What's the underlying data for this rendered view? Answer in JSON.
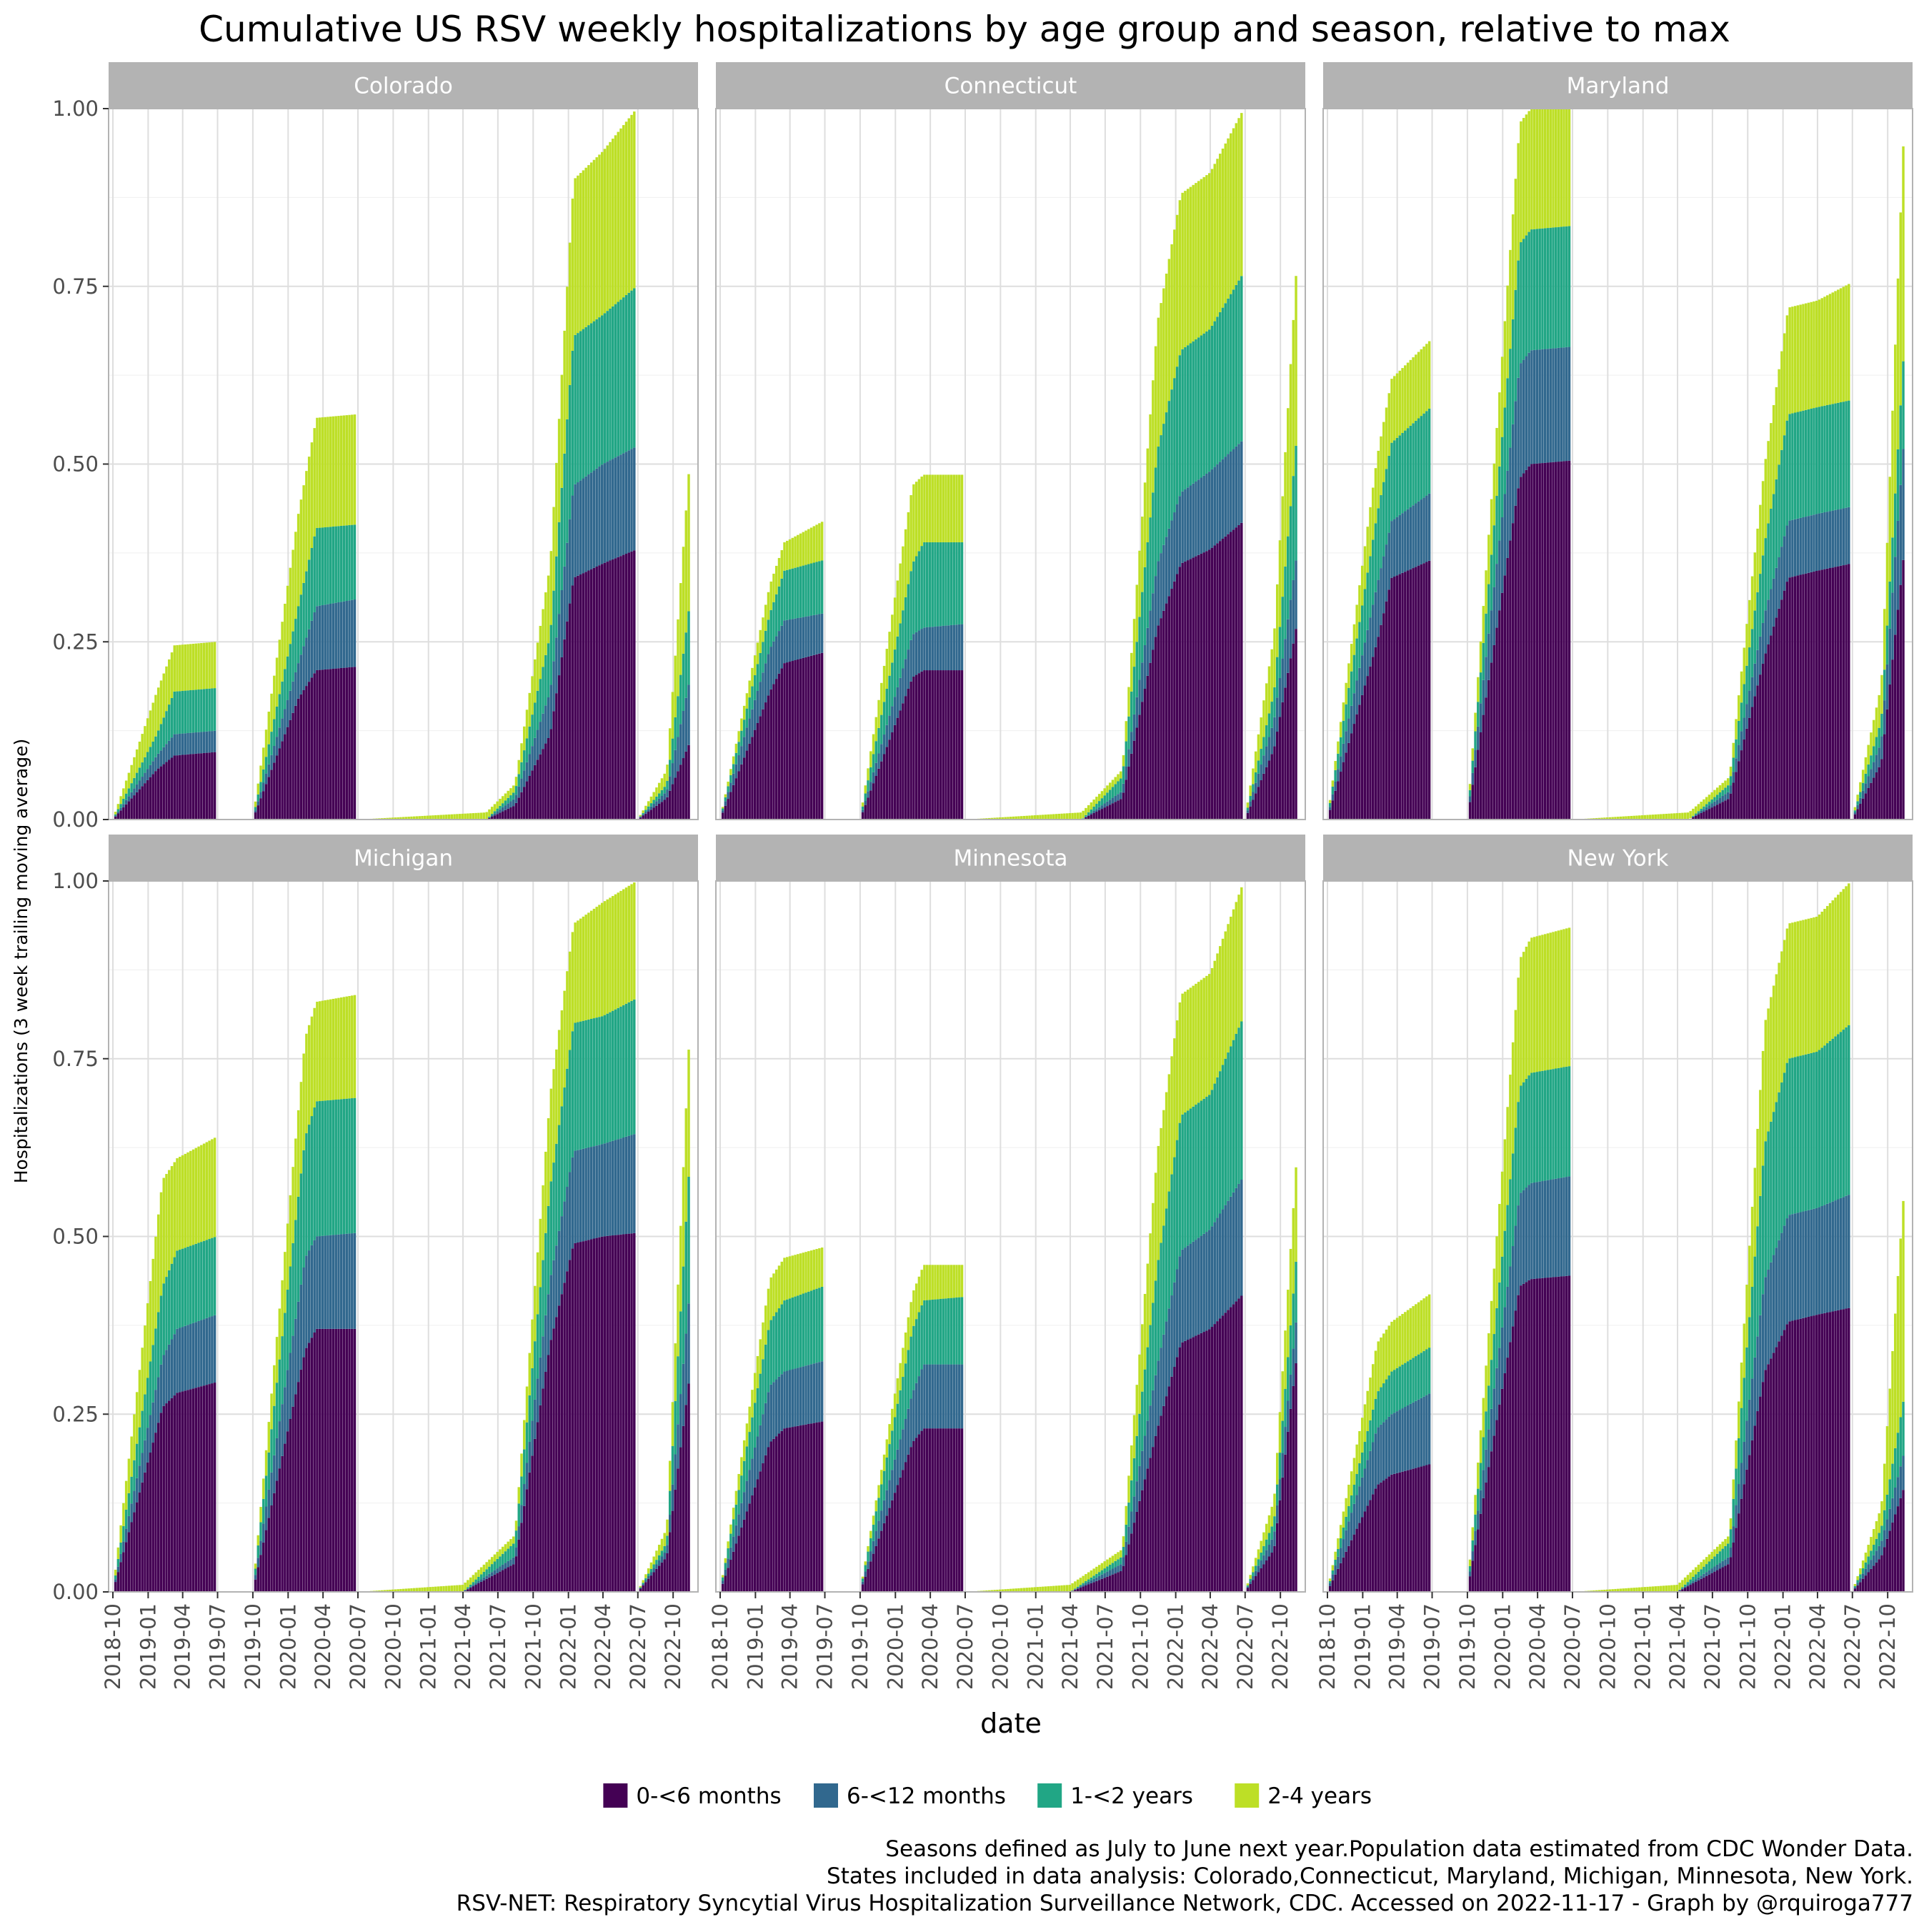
{
  "chart_data": {
    "type": "bar",
    "stacked": true,
    "facet_by": "state",
    "title": "Cumulative US RSV weekly hospitalizations by age group and season, relative to max",
    "xlabel": "date",
    "ylabel": "Hospitalizations (3 week trailing moving average)",
    "ylim": [
      0,
      1
    ],
    "yticks": [
      "0.00",
      "0.25",
      "0.50",
      "0.75",
      "1.00"
    ],
    "xticks": [
      "2018-10",
      "2019-01",
      "2019-04",
      "2019-07",
      "2019-10",
      "2020-01",
      "2020-04",
      "2020-07",
      "2020-10",
      "2021-01",
      "2021-04",
      "2021-07",
      "2021-10",
      "2022-01",
      "2022-04",
      "2022-07",
      "2022-10"
    ],
    "xrange": [
      "2018-10-01",
      "2022-11-20"
    ],
    "grid": true,
    "legend_position": "bottom",
    "series_names": [
      "0-<6 months",
      "6-<12 months",
      "1-<2 years",
      "2-4 years"
    ],
    "colors": [
      "#440154",
      "#31688e",
      "#21a685",
      "#bddf26"
    ],
    "panels": [
      {
        "state": "Colorado",
        "seasons": [
          {
            "x": [
              "2018-10-01",
              "2019-01-24",
              "2019-03-11",
              "2019-06-28"
            ],
            "curves": [
              [
                0.0,
                0.07,
                0.09,
                0.095
              ],
              [
                0.0,
                0.09,
                0.12,
                0.125
              ],
              [
                0.0,
                0.12,
                0.18,
                0.185
              ],
              [
                0.0,
                0.18,
                0.245,
                0.25
              ]
            ]
          },
          {
            "x": [
              "2019-10-01",
              "2020-01-28",
              "2020-03-15",
              "2020-06-28"
            ],
            "curves": [
              [
                0.0,
                0.17,
                0.21,
                0.215
              ],
              [
                0.0,
                0.22,
                0.3,
                0.31
              ],
              [
                0.0,
                0.3,
                0.41,
                0.415
              ],
              [
                0.0,
                0.43,
                0.565,
                0.57
              ]
            ]
          },
          {
            "x": [
              "2020-07-01",
              "2021-06-01",
              "2021-08-15",
              "2021-11-15",
              "2022-01-15",
              "2022-04-01",
              "2022-06-28"
            ],
            "curves": [
              [
                0.0,
                0.0,
                0.02,
                0.12,
                0.34,
                0.36,
                0.38
              ],
              [
                0.0,
                0.0,
                0.03,
                0.18,
                0.47,
                0.5,
                0.525
              ],
              [
                0.0,
                0.0,
                0.04,
                0.26,
                0.68,
                0.71,
                0.75
              ],
              [
                0.0,
                0.01,
                0.05,
                0.36,
                0.9,
                0.94,
                1.0
              ]
            ]
          },
          {
            "x": [
              "2022-07-01",
              "2022-09-15",
              "2022-11-15"
            ],
            "curves": [
              [
                0.0,
                0.03,
                0.11
              ],
              [
                0.0,
                0.04,
                0.2
              ],
              [
                0.0,
                0.05,
                0.31
              ],
              [
                0.0,
                0.07,
                0.515
              ]
            ]
          }
        ]
      },
      {
        "state": "Connecticut",
        "seasons": [
          {
            "x": [
              "2018-10-01",
              "2019-02-08",
              "2019-03-18",
              "2019-06-28"
            ],
            "curves": [
              [
                0.0,
                0.18,
                0.22,
                0.235
              ],
              [
                0.0,
                0.24,
                0.28,
                0.29
              ],
              [
                0.0,
                0.29,
                0.35,
                0.365
              ],
              [
                0.0,
                0.33,
                0.39,
                0.42
              ]
            ]
          },
          {
            "x": [
              "2019-10-01",
              "2020-02-15",
              "2020-03-15",
              "2020-06-28"
            ],
            "curves": [
              [
                0.0,
                0.2,
                0.21,
                0.21
              ],
              [
                0.0,
                0.26,
                0.27,
                0.275
              ],
              [
                0.0,
                0.36,
                0.39,
                0.39
              ],
              [
                0.0,
                0.47,
                0.485,
                0.485
              ]
            ]
          },
          {
            "x": [
              "2020-07-01",
              "2021-05-01",
              "2021-08-15",
              "2021-11-15",
              "2022-01-15",
              "2022-04-01",
              "2022-06-28"
            ],
            "curves": [
              [
                0.0,
                0.0,
                0.03,
                0.27,
                0.36,
                0.38,
                0.42
              ],
              [
                0.0,
                0.0,
                0.04,
                0.36,
                0.46,
                0.49,
                0.535
              ],
              [
                0.0,
                0.0,
                0.06,
                0.52,
                0.66,
                0.69,
                0.77
              ],
              [
                0.0,
                0.01,
                0.07,
                0.7,
                0.88,
                0.91,
                1.0
              ]
            ]
          },
          {
            "x": [
              "2022-07-01",
              "2022-09-15",
              "2022-11-15"
            ],
            "curves": [
              [
                0.0,
                0.1,
                0.28
              ],
              [
                0.0,
                0.14,
                0.38
              ],
              [
                0.0,
                0.18,
                0.55
              ],
              [
                0.0,
                0.26,
                0.8
              ]
            ]
          }
        ]
      },
      {
        "state": "Maryland",
        "seasons": [
          {
            "x": [
              "2018-10-01",
              "2019-02-08",
              "2019-03-18",
              "2019-06-28"
            ],
            "curves": [
              [
                0.0,
                0.25,
                0.34,
                0.365
              ],
              [
                0.0,
                0.33,
                0.42,
                0.46
              ],
              [
                0.0,
                0.43,
                0.53,
                0.58
              ],
              [
                0.0,
                0.51,
                0.62,
                0.675
              ]
            ]
          },
          {
            "x": [
              "2019-10-01",
              "2020-02-15",
              "2020-03-15",
              "2020-06-28"
            ],
            "curves": [
              [
                0.0,
                0.48,
                0.5,
                0.505
              ],
              [
                0.0,
                0.64,
                0.66,
                0.665
              ],
              [
                0.0,
                0.81,
                0.83,
                0.835
              ],
              [
                0.0,
                0.98,
                1.0,
                1.0
              ]
            ]
          },
          {
            "x": [
              "2020-07-01",
              "2021-05-01",
              "2021-08-15",
              "2021-11-15",
              "2022-01-15",
              "2022-04-01",
              "2022-06-28"
            ],
            "curves": [
              [
                0.0,
                0.0,
                0.03,
                0.23,
                0.34,
                0.35,
                0.36
              ],
              [
                0.0,
                0.0,
                0.04,
                0.29,
                0.42,
                0.43,
                0.44
              ],
              [
                0.0,
                0.0,
                0.05,
                0.39,
                0.57,
                0.58,
                0.59
              ],
              [
                0.0,
                0.01,
                0.06,
                0.5,
                0.72,
                0.73,
                0.755
              ]
            ]
          },
          {
            "x": [
              "2022-07-01",
              "2022-09-15",
              "2022-11-15"
            ],
            "curves": [
              [
                0.0,
                0.08,
                0.385
              ],
              [
                0.0,
                0.11,
                0.55
              ],
              [
                0.0,
                0.14,
                0.68
              ],
              [
                0.0,
                0.19,
                1.0
              ]
            ]
          }
        ]
      },
      {
        "state": "Michigan",
        "seasons": [
          {
            "x": [
              "2018-10-01",
              "2019-02-08",
              "2019-03-18",
              "2019-06-28"
            ],
            "curves": [
              [
                0.0,
                0.26,
                0.28,
                0.295
              ],
              [
                0.0,
                0.33,
                0.37,
                0.39
              ],
              [
                0.0,
                0.43,
                0.48,
                0.5
              ],
              [
                0.0,
                0.58,
                0.61,
                0.64
              ]
            ]
          },
          {
            "x": [
              "2019-10-01",
              "2020-02-15",
              "2020-03-15",
              "2020-06-28"
            ],
            "curves": [
              [
                0.0,
                0.34,
                0.37,
                0.37
              ],
              [
                0.0,
                0.47,
                0.5,
                0.505
              ],
              [
                0.0,
                0.64,
                0.69,
                0.695
              ],
              [
                0.0,
                0.78,
                0.83,
                0.84
              ]
            ]
          },
          {
            "x": [
              "2020-07-01",
              "2021-04-01",
              "2021-08-15",
              "2021-11-15",
              "2022-01-15",
              "2022-04-01",
              "2022-06-28"
            ],
            "curves": [
              [
                0.0,
                0.0,
                0.04,
                0.35,
                0.49,
                0.5,
                0.505
              ],
              [
                0.0,
                0.0,
                0.05,
                0.44,
                0.62,
                0.63,
                0.645
              ],
              [
                0.0,
                0.0,
                0.07,
                0.57,
                0.8,
                0.81,
                0.835
              ],
              [
                0.0,
                0.01,
                0.08,
                0.7,
                0.94,
                0.97,
                1.0
              ]
            ]
          },
          {
            "x": [
              "2022-07-01",
              "2022-09-15",
              "2022-11-15"
            ],
            "curves": [
              [
                0.0,
                0.05,
                0.31
              ],
              [
                0.0,
                0.06,
                0.43
              ],
              [
                0.0,
                0.07,
                0.62
              ],
              [
                0.0,
                0.09,
                0.81
              ]
            ]
          }
        ]
      },
      {
        "state": "Minnesota",
        "seasons": [
          {
            "x": [
              "2018-10-01",
              "2019-02-08",
              "2019-03-18",
              "2019-06-28"
            ],
            "curves": [
              [
                0.0,
                0.21,
                0.23,
                0.24
              ],
              [
                0.0,
                0.29,
                0.31,
                0.325
              ],
              [
                0.0,
                0.38,
                0.41,
                0.43
              ],
              [
                0.0,
                0.44,
                0.47,
                0.485
              ]
            ]
          },
          {
            "x": [
              "2019-10-01",
              "2020-02-15",
              "2020-03-15",
              "2020-06-28"
            ],
            "curves": [
              [
                0.0,
                0.21,
                0.23,
                0.23
              ],
              [
                0.0,
                0.28,
                0.32,
                0.32
              ],
              [
                0.0,
                0.37,
                0.41,
                0.415
              ],
              [
                0.0,
                0.42,
                0.46,
                0.46
              ]
            ]
          },
          {
            "x": [
              "2020-07-01",
              "2021-04-01",
              "2021-08-15",
              "2021-11-15",
              "2022-01-15",
              "2022-04-01",
              "2022-06-28"
            ],
            "curves": [
              [
                0.0,
                0.0,
                0.03,
                0.23,
                0.35,
                0.37,
                0.42
              ],
              [
                0.0,
                0.0,
                0.04,
                0.32,
                0.48,
                0.51,
                0.585
              ],
              [
                0.0,
                0.0,
                0.05,
                0.46,
                0.67,
                0.7,
                0.81
              ],
              [
                0.0,
                0.01,
                0.06,
                0.62,
                0.84,
                0.87,
                1.0
              ]
            ]
          },
          {
            "x": [
              "2022-07-01",
              "2022-09-15",
              "2022-11-15"
            ],
            "curves": [
              [
                0.0,
                0.06,
                0.34
              ],
              [
                0.0,
                0.08,
                0.4
              ],
              [
                0.0,
                0.1,
                0.49
              ],
              [
                0.0,
                0.13,
                0.63
              ]
            ]
          }
        ]
      },
      {
        "state": "New York",
        "seasons": [
          {
            "x": [
              "2018-10-01",
              "2019-02-08",
              "2019-03-18",
              "2019-06-28"
            ],
            "curves": [
              [
                0.0,
                0.15,
                0.165,
                0.18
              ],
              [
                0.0,
                0.23,
                0.25,
                0.28
              ],
              [
                0.0,
                0.28,
                0.31,
                0.345
              ],
              [
                0.0,
                0.35,
                0.38,
                0.42
              ]
            ]
          },
          {
            "x": [
              "2019-10-01",
              "2020-02-15",
              "2020-03-15",
              "2020-06-28"
            ],
            "curves": [
              [
                0.0,
                0.43,
                0.44,
                0.445
              ],
              [
                0.0,
                0.56,
                0.575,
                0.585
              ],
              [
                0.0,
                0.71,
                0.73,
                0.74
              ],
              [
                0.0,
                0.89,
                0.92,
                0.935
              ]
            ]
          },
          {
            "x": [
              "2020-07-01",
              "2021-04-01",
              "2021-08-15",
              "2021-11-15",
              "2022-01-15",
              "2022-04-01",
              "2022-06-28"
            ],
            "curves": [
              [
                0.0,
                0.0,
                0.04,
                0.31,
                0.38,
                0.39,
                0.4
              ],
              [
                0.0,
                0.0,
                0.05,
                0.44,
                0.53,
                0.54,
                0.56
              ],
              [
                0.0,
                0.0,
                0.07,
                0.63,
                0.75,
                0.76,
                0.8
              ],
              [
                0.0,
                0.01,
                0.08,
                0.8,
                0.94,
                0.95,
                1.0
              ]
            ]
          },
          {
            "x": [
              "2022-07-01",
              "2022-09-15",
              "2022-11-15"
            ],
            "curves": [
              [
                0.0,
                0.05,
                0.15
              ],
              [
                0.0,
                0.07,
                0.2
              ],
              [
                0.0,
                0.09,
                0.28
              ],
              [
                0.0,
                0.12,
                0.58
              ]
            ]
          }
        ]
      }
    ]
  },
  "caption": [
    "Seasons defined as July to June next year.Population data estimated from CDC Wonder Data.",
    "States included in data analysis: Colorado,Connecticut, Maryland, Michigan, Minnesota, New York.",
    "RSV-NET: Respiratory Syncytial Virus Hospitalization Surveillance Network, CDC. Accessed on 2022-11-17 - Graph by @rquiroga777"
  ]
}
